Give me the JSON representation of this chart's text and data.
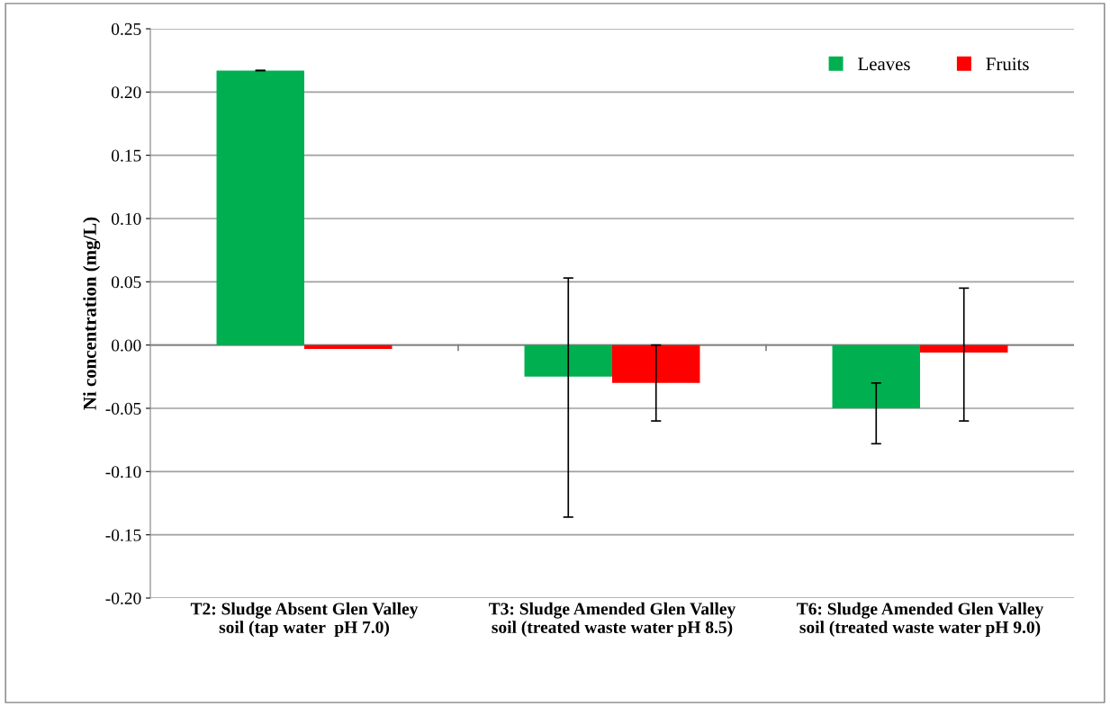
{
  "chart_data": {
    "type": "bar",
    "ylabel": "Ni concentration (mg/L)",
    "categories": [
      "T2: Sludge Absent Glen Valley\nsoil (tap water  pH 7.0)",
      "T3: Sludge Amended Glen Valley\nsoil (treated waste water pH 8.5)",
      "T6: Sludge Amended Glen Valley\nsoil (treated waste water pH 9.0)"
    ],
    "series": [
      {
        "name": "Leaves",
        "color": "#00b050",
        "values": [
          0.217,
          -0.025,
          -0.05
        ],
        "errors": [
          [
            0.217,
            0.217
          ],
          [
            -0.136,
            0.053
          ],
          [
            -0.078,
            -0.03
          ]
        ]
      },
      {
        "name": "Fruits",
        "color": "#ff0000",
        "values": [
          -0.003,
          -0.03,
          -0.006
        ],
        "errors": [
          null,
          [
            -0.06,
            0.0
          ],
          [
            -0.06,
            0.045
          ]
        ]
      }
    ],
    "ylim": [
      -0.2,
      0.25
    ],
    "yticks": [
      {
        "value": -0.2,
        "label": "-0.20"
      },
      {
        "value": -0.15,
        "label": "-0.15"
      },
      {
        "value": -0.1,
        "label": "-0.10"
      },
      {
        "value": -0.05,
        "label": "-0.05"
      },
      {
        "value": 0,
        "label": "0.00"
      },
      {
        "value": 0.05,
        "label": "0.05"
      },
      {
        "value": 0.1,
        "label": "0.10"
      },
      {
        "value": 0.15,
        "label": "0.15"
      },
      {
        "value": 0.2,
        "label": "0.20"
      },
      {
        "value": 0.25,
        "label": "0.25"
      }
    ],
    "grid": "y",
    "legend": "top right"
  }
}
